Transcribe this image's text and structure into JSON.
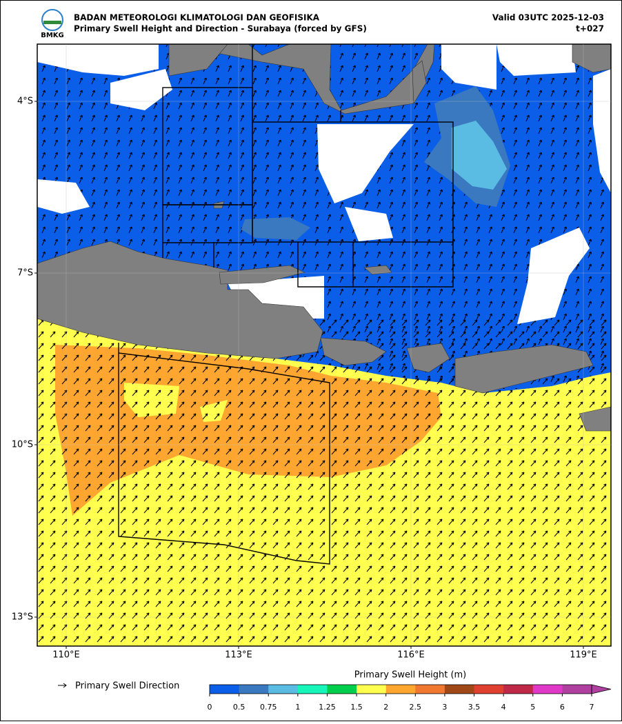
{
  "header": {
    "logo": "BMKG",
    "agency": "BADAN METEOROLOGI KLIMATOLOGI DAN GEOFISIKA",
    "title": "Primary Swell Height and Direction - Surabaya (forced by GFS)",
    "valid": "Valid 03UTC 2025-12-03",
    "lead": "t+027"
  },
  "map": {
    "lat_labels": [
      "4°S",
      "7°S",
      "10°S",
      "13°S"
    ],
    "lon_labels": [
      "110°E",
      "113°E",
      "116°E",
      "119°E"
    ]
  },
  "legend": {
    "arrow_label": "Primary Swell Direction"
  },
  "colorbar": {
    "title": "Primary Swell Height (m)",
    "ticks": [
      0,
      0.5,
      0.75,
      1,
      1.25,
      1.5,
      2,
      2.5,
      3,
      3.5,
      4,
      5,
      6,
      7
    ],
    "colors": [
      "#0a5ee8",
      "#3a78c0",
      "#5abbe3",
      "#17f5b8",
      "#00cf4e",
      "#ffff50",
      "#ffa630",
      "#f07830",
      "#a04818",
      "#e04030",
      "#c02848",
      "#e038c8",
      "#b040a0"
    ]
  }
}
